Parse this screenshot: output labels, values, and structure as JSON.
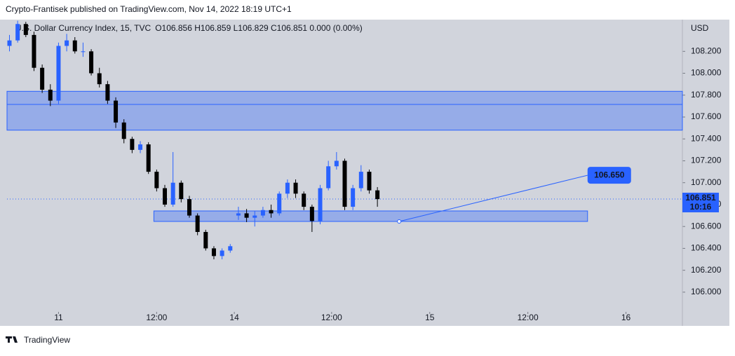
{
  "header": "Crypto-Frantisek published on TradingView.com, Nov 14, 2022 18:19 UTC+1",
  "footer": "TradingView",
  "chart_data": {
    "type": "candlestick",
    "title": "U.S. Dollar Currency Index, 15, TVC",
    "ohlc_legend": "O106.856 H106.859 L106.829 C106.851 0.000 (0.00%)",
    "currency": "USD",
    "up_color": "#2962ff",
    "down_color": "#000000",
    "ylim": [
      105.82,
      108.49
    ],
    "yticks": [
      {
        "value": 106.0,
        "label": "106.000"
      },
      {
        "value": 106.2,
        "label": "106.200"
      },
      {
        "value": 106.4,
        "label": "106.400"
      },
      {
        "value": 106.6,
        "label": "106.600"
      },
      {
        "value": 106.8,
        "label": "106.800"
      },
      {
        "value": 107.0,
        "label": "107.000"
      },
      {
        "value": 107.2,
        "label": "107.200"
      },
      {
        "value": 107.4,
        "label": "107.400"
      },
      {
        "value": 107.6,
        "label": "107.600"
      },
      {
        "value": 107.8,
        "label": "107.800"
      },
      {
        "value": 108.0,
        "label": "108.000"
      },
      {
        "value": 108.2,
        "label": "108.200"
      }
    ],
    "xlim": [
      -6.3,
      76.3
    ],
    "xticks": [
      {
        "value": 0,
        "label": "11"
      },
      {
        "value": 12,
        "label": "12:00"
      },
      {
        "value": 21.5,
        "label": "14"
      },
      {
        "value": 33.4,
        "label": "12:00"
      },
      {
        "value": 45.4,
        "label": "15"
      },
      {
        "value": 57.4,
        "label": "12:00"
      },
      {
        "value": 69.4,
        "label": "16"
      }
    ],
    "x": [
      -6,
      -5,
      -4,
      -3,
      -2,
      -1,
      0,
      1,
      2,
      3,
      4,
      5,
      6,
      7,
      8,
      9,
      10,
      11,
      12,
      13,
      14,
      15,
      16,
      17,
      18,
      19,
      20,
      21,
      22,
      23,
      24,
      25,
      26,
      27,
      28,
      29,
      30,
      31,
      32,
      33,
      34,
      35,
      36,
      37,
      38,
      39
    ],
    "open": [
      108.25,
      108.3,
      108.45,
      108.35,
      108.05,
      107.85,
      107.75,
      108.25,
      108.3,
      108.2,
      108.2,
      108.0,
      107.9,
      107.75,
      107.55,
      107.4,
      107.3,
      107.35,
      107.1,
      106.95,
      106.8,
      107.0,
      106.85,
      106.7,
      106.55,
      106.4,
      106.33,
      106.38,
      106.7,
      106.72,
      106.68,
      106.7,
      106.75,
      106.72,
      106.9,
      107.0,
      106.9,
      106.78,
      106.65,
      106.95,
      107.15,
      107.2,
      106.78,
      106.95,
      107.1,
      106.93
    ],
    "high": [
      108.35,
      108.48,
      108.47,
      108.38,
      108.08,
      107.9,
      108.28,
      108.36,
      108.33,
      108.28,
      108.22,
      108.05,
      107.93,
      107.78,
      107.58,
      107.42,
      107.38,
      107.37,
      107.12,
      106.98,
      107.28,
      107.02,
      106.88,
      106.72,
      106.57,
      106.42,
      106.4,
      106.44,
      106.78,
      106.76,
      106.74,
      106.78,
      106.8,
      106.92,
      107.03,
      107.03,
      106.92,
      106.8,
      106.98,
      107.2,
      107.28,
      107.22,
      106.98,
      107.16,
      107.12,
      106.96
    ],
    "low": [
      108.2,
      108.28,
      108.33,
      108.02,
      107.82,
      107.7,
      107.72,
      108.2,
      108.18,
      108.15,
      107.98,
      107.87,
      107.72,
      107.5,
      107.36,
      107.27,
      107.27,
      107.08,
      106.92,
      106.78,
      106.78,
      106.82,
      106.68,
      106.52,
      106.38,
      106.3,
      106.3,
      106.36,
      106.66,
      106.64,
      106.6,
      106.68,
      106.68,
      106.7,
      106.86,
      106.86,
      106.75,
      106.55,
      106.62,
      106.93,
      107.12,
      106.75,
      106.75,
      106.92,
      106.9,
      106.78
    ],
    "close": [
      108.3,
      108.45,
      108.35,
      108.05,
      107.85,
      107.75,
      108.25,
      108.3,
      108.2,
      108.2,
      108.0,
      107.9,
      107.75,
      107.55,
      107.4,
      107.3,
      107.35,
      107.1,
      106.95,
      106.8,
      107.0,
      106.85,
      106.7,
      106.55,
      106.4,
      106.33,
      106.38,
      106.42,
      106.72,
      106.68,
      106.7,
      106.75,
      106.72,
      106.9,
      107.0,
      106.9,
      106.78,
      106.65,
      106.95,
      107.15,
      107.2,
      106.78,
      106.95,
      107.1,
      106.93,
      106.85
    ],
    "zones": [
      {
        "x": [
          -6.3,
          76.3
        ],
        "y": [
          107.48,
          107.835
        ],
        "mid": 107.715
      },
      {
        "x": [
          11.66,
          64.7
        ],
        "y": [
          106.646,
          106.742
        ]
      }
    ],
    "projection": {
      "x": [
        41.66,
        64.7
      ],
      "y": [
        106.646,
        107.068
      ],
      "label": "106.650"
    },
    "last_price": {
      "value": 106.851,
      "label": "106.851",
      "countdown": "10:16"
    }
  }
}
